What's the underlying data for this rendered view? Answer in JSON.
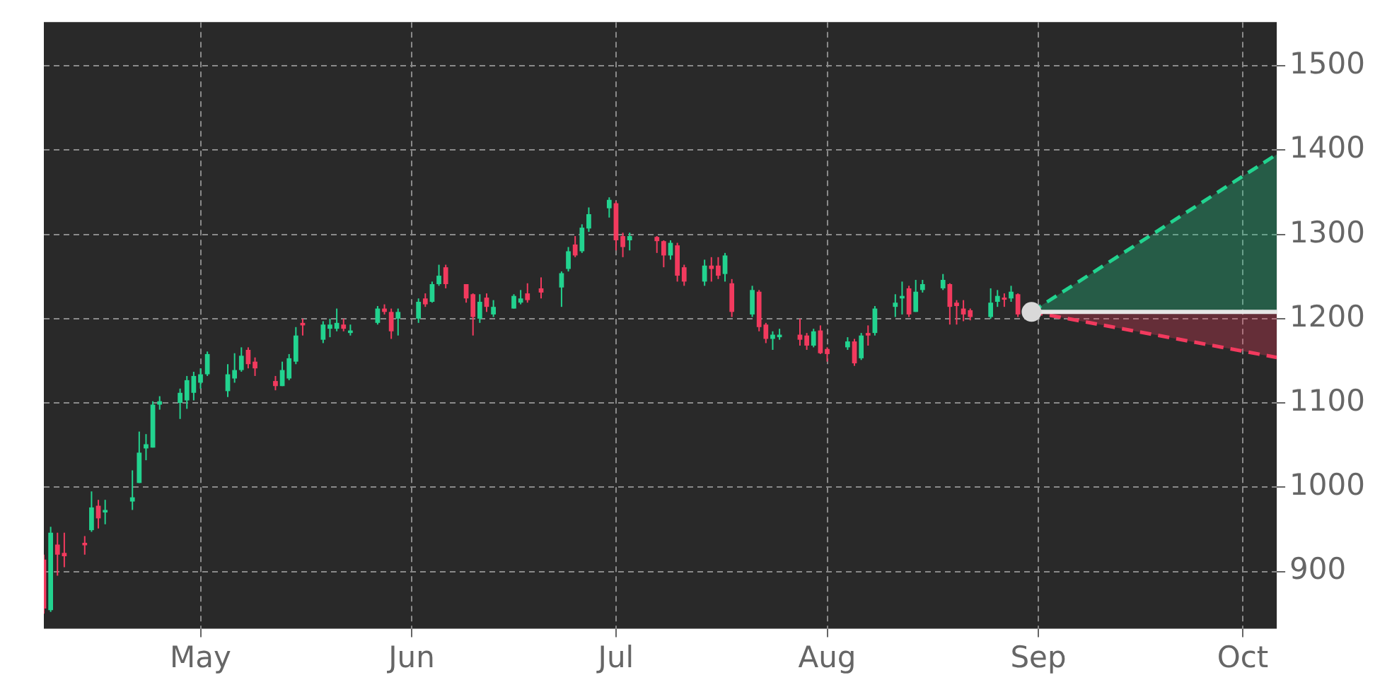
{
  "chart_data": {
    "type": "candlestick",
    "x": [
      "--04-08",
      "--04-09",
      "--04-10",
      "--04-11",
      "--04-14",
      "--04-15",
      "--04-16",
      "--04-17",
      "--04-21",
      "--04-22",
      "--04-23",
      "--04-24",
      "--04-25",
      "--04-28",
      "--04-29",
      "--04-30",
      "--05-01",
      "--05-02",
      "--05-05",
      "--05-06",
      "--05-07",
      "--05-08",
      "--05-09",
      "--05-12",
      "--05-13",
      "--05-14",
      "--05-15",
      "--05-16",
      "--05-19",
      "--05-20",
      "--05-21",
      "--05-22",
      "--05-23",
      "--05-27",
      "--05-28",
      "--05-29",
      "--05-30",
      "--06-02",
      "--06-03",
      "--06-04",
      "--06-05",
      "--06-06",
      "--06-09",
      "--06-10",
      "--06-11",
      "--06-12",
      "--06-13",
      "--06-16",
      "--06-17",
      "--06-18",
      "--06-20",
      "--06-23",
      "--06-24",
      "--06-25",
      "--06-26",
      "--06-27",
      "--06-30",
      "--07-01",
      "--07-02",
      "--07-03",
      "--07-07",
      "--07-08",
      "--07-09",
      "--07-10",
      "--07-11",
      "--07-14",
      "--07-15",
      "--07-16",
      "--07-17",
      "--07-18",
      "--07-21",
      "--07-22",
      "--07-23",
      "--07-24",
      "--07-25",
      "--07-28",
      "--07-29",
      "--07-30",
      "--07-31",
      "--08-01",
      "--08-04",
      "--08-05",
      "--08-06",
      "--08-07",
      "--08-08",
      "--08-11",
      "--08-12",
      "--08-13",
      "--08-14",
      "--08-15",
      "--08-18",
      "--08-19",
      "--08-20",
      "--08-21",
      "--08-22",
      "--08-25",
      "--08-26",
      "--08-27",
      "--08-28",
      "--08-29"
    ],
    "ohlc": [
      [
        914,
        920,
        850,
        856
      ],
      [
        854,
        953,
        852,
        946
      ],
      [
        932,
        946,
        895,
        920
      ],
      [
        922,
        946,
        905,
        918
      ],
      [
        934,
        942,
        920,
        931
      ],
      [
        949,
        995,
        947,
        976
      ],
      [
        978,
        985,
        951,
        963
      ],
      [
        970,
        985,
        956,
        973
      ],
      [
        983,
        1020,
        973,
        988
      ],
      [
        1005,
        1066,
        1005,
        1041
      ],
      [
        1046,
        1063,
        1032,
        1051
      ],
      [
        1047,
        1102,
        1047,
        1098
      ],
      [
        1098,
        1108,
        1092,
        1102
      ],
      [
        1100,
        1117,
        1081,
        1112
      ],
      [
        1103,
        1132,
        1093,
        1127
      ],
      [
        1112,
        1137,
        1103,
        1132
      ],
      [
        1124,
        1141,
        1117,
        1134
      ],
      [
        1134,
        1161,
        1132,
        1158
      ],
      [
        1114,
        1146,
        1107,
        1134
      ],
      [
        1129,
        1159,
        1124,
        1139
      ],
      [
        1139,
        1166,
        1137,
        1156
      ],
      [
        1163,
        1166,
        1141,
        1146
      ],
      [
        1149,
        1154,
        1132,
        1141
      ],
      [
        1126,
        1132,
        1115,
        1120
      ],
      [
        1120,
        1149,
        1120,
        1139
      ],
      [
        1129,
        1158,
        1127,
        1153
      ],
      [
        1149,
        1190,
        1146,
        1180
      ],
      [
        1195,
        1200,
        1180,
        1192
      ],
      [
        1175,
        1197,
        1171,
        1193
      ],
      [
        1188,
        1200,
        1178,
        1193
      ],
      [
        1188,
        1212,
        1185,
        1195
      ],
      [
        1193,
        1200,
        1185,
        1188
      ],
      [
        1183,
        1193,
        1180,
        1186
      ],
      [
        1195,
        1215,
        1193,
        1212
      ],
      [
        1212,
        1217,
        1205,
        1208
      ],
      [
        1208,
        1212,
        1176,
        1185
      ],
      [
        1200,
        1212,
        1180,
        1208
      ],
      [
        1200,
        1224,
        1195,
        1220
      ],
      [
        1224,
        1230,
        1214,
        1217
      ],
      [
        1220,
        1244,
        1219,
        1241
      ],
      [
        1241,
        1264,
        1239,
        1251
      ],
      [
        1261,
        1264,
        1236,
        1241
      ],
      [
        1241,
        1241,
        1219,
        1224
      ],
      [
        1229,
        1230,
        1180,
        1202
      ],
      [
        1200,
        1229,
        1195,
        1220
      ],
      [
        1225,
        1230,
        1208,
        1214
      ],
      [
        1205,
        1222,
        1202,
        1214
      ],
      [
        1212,
        1229,
        1212,
        1227
      ],
      [
        1219,
        1234,
        1217,
        1224
      ],
      [
        1230,
        1242,
        1219,
        1222
      ],
      [
        1236,
        1249,
        1224,
        1231
      ],
      [
        1237,
        1256,
        1214,
        1254
      ],
      [
        1259,
        1285,
        1256,
        1280
      ],
      [
        1288,
        1298,
        1273,
        1275
      ],
      [
        1280,
        1312,
        1278,
        1308
      ],
      [
        1307,
        1332,
        1303,
        1324
      ],
      [
        1331,
        1344,
        1320,
        1341
      ],
      [
        1337,
        1339,
        1281,
        1293
      ],
      [
        1298,
        1302,
        1273,
        1285
      ],
      [
        1293,
        1302,
        1281,
        1298
      ],
      [
        1297,
        1298,
        1278,
        1292
      ],
      [
        1292,
        1293,
        1261,
        1275
      ],
      [
        1275,
        1293,
        1270,
        1290
      ],
      [
        1287,
        1290,
        1244,
        1251
      ],
      [
        1261,
        1264,
        1239,
        1244
      ],
      [
        1244,
        1270,
        1239,
        1263
      ],
      [
        1263,
        1273,
        1244,
        1259
      ],
      [
        1263,
        1273,
        1247,
        1251
      ],
      [
        1253,
        1278,
        1244,
        1275
      ],
      [
        1242,
        1247,
        1202,
        1208
      ],
      [
        1205,
        1239,
        1202,
        1234
      ],
      [
        1232,
        1234,
        1185,
        1190
      ],
      [
        1193,
        1195,
        1171,
        1176
      ],
      [
        1176,
        1185,
        1163,
        1181
      ],
      [
        1178,
        1188,
        1175,
        1181
      ],
      [
        1181,
        1200,
        1168,
        1175
      ],
      [
        1180,
        1183,
        1163,
        1168
      ],
      [
        1168,
        1188,
        1166,
        1185
      ],
      [
        1186,
        1192,
        1158,
        1159
      ],
      [
        1164,
        1166,
        1149,
        1158
      ],
      [
        1166,
        1178,
        1163,
        1173
      ],
      [
        1173,
        1176,
        1144,
        1147
      ],
      [
        1153,
        1183,
        1151,
        1180
      ],
      [
        1183,
        1192,
        1168,
        1180
      ],
      [
        1183,
        1215,
        1180,
        1212
      ],
      [
        1214,
        1229,
        1202,
        1219
      ],
      [
        1224,
        1244,
        1205,
        1227
      ],
      [
        1236,
        1239,
        1202,
        1205
      ],
      [
        1208,
        1246,
        1208,
        1232
      ],
      [
        1234,
        1246,
        1231,
        1241
      ],
      [
        1236,
        1253,
        1234,
        1246
      ],
      [
        1241,
        1242,
        1193,
        1214
      ],
      [
        1219,
        1222,
        1193,
        1215
      ],
      [
        1212,
        1222,
        1197,
        1205
      ],
      [
        1210,
        1212,
        1198,
        1202
      ],
      [
        1202,
        1236,
        1200,
        1219
      ],
      [
        1220,
        1234,
        1214,
        1227
      ],
      [
        1225,
        1230,
        1214,
        1224
      ],
      [
        1224,
        1239,
        1220,
        1232
      ],
      [
        1229,
        1230,
        1202,
        1205
      ]
    ],
    "colors": [
      "#f23a5e",
      "#22d38f",
      "#f23a5e",
      "#f23a5e",
      "#f23a5e",
      "#22d38f",
      "#f23a5e",
      "#22d38f",
      "#22d38f",
      "#22d38f",
      "#22d38f",
      "#22d38f",
      "#22d38f",
      "#22d38f",
      "#22d38f",
      "#22d38f",
      "#22d38f",
      "#22d38f",
      "#22d38f",
      "#22d38f",
      "#22d38f",
      "#f23a5e",
      "#f23a5e",
      "#f23a5e",
      "#22d38f",
      "#22d38f",
      "#22d38f",
      "#f23a5e",
      "#22d38f",
      "#22d38f",
      "#22d38f",
      "#f23a5e",
      "#22d38f",
      "#22d38f",
      "#f23a5e",
      "#f23a5e",
      "#22d38f",
      "#22d38f",
      "#f23a5e",
      "#22d38f",
      "#22d38f",
      "#f23a5e",
      "#f23a5e",
      "#f23a5e",
      "#22d38f",
      "#f23a5e",
      "#22d38f",
      "#22d38f",
      "#22d38f",
      "#f23a5e",
      "#f23a5e",
      "#22d38f",
      "#22d38f",
      "#f23a5e",
      "#22d38f",
      "#22d38f",
      "#22d38f",
      "#f23a5e",
      "#f23a5e",
      "#22d38f",
      "#f23a5e",
      "#f23a5e",
      "#22d38f",
      "#f23a5e",
      "#f23a5e",
      "#22d38f",
      "#f23a5e",
      "#f23a5e",
      "#22d38f",
      "#f23a5e",
      "#22d38f",
      "#f23a5e",
      "#f23a5e",
      "#22d38f",
      "#22d38f",
      "#f23a5e",
      "#f23a5e",
      "#22d38f",
      "#f23a5e",
      "#f23a5e",
      "#22d38f",
      "#f23a5e",
      "#22d38f",
      "#f23a5e",
      "#22d38f",
      "#22d38f",
      "#22d38f",
      "#f23a5e",
      "#22d38f",
      "#22d38f",
      "#22d38f",
      "#f23a5e",
      "#f23a5e",
      "#f23a5e",
      "#f23a5e",
      "#22d38f",
      "#22d38f",
      "#f23a5e",
      "#22d38f",
      "#f23a5e"
    ],
    "series": [
      {
        "type": "area",
        "color": "#22d38f",
        "line_style": "dashed",
        "x": [
          "--08-31",
          "--10-06"
        ],
        "values": [
          1208,
          1395
        ]
      },
      {
        "type": "area",
        "color": "#f23a5e",
        "line_style": "dashed",
        "x": [
          "--08-31",
          "--10-06"
        ],
        "values": [
          1208,
          1154
        ]
      },
      {
        "type": "line",
        "color": "#e6e6e6",
        "line_style": "solid",
        "x": [
          "--08-31",
          "--10-06"
        ],
        "values": [
          1208,
          1208
        ]
      },
      {
        "type": "scatter",
        "color": "#d9d9d9",
        "marker": "circle",
        "x": [
          "--08-31"
        ],
        "values": [
          1208
        ]
      }
    ],
    "xlim": [
      "--04-08",
      "--10-06"
    ],
    "xticks": [
      {
        "value": "--05-01",
        "label": "May"
      },
      {
        "value": "--06-01",
        "label": "Jun"
      },
      {
        "value": "--07-01",
        "label": "Jul"
      },
      {
        "value": "--08-01",
        "label": "Aug"
      },
      {
        "value": "--09-01",
        "label": "Sep"
      },
      {
        "value": "--10-01",
        "label": "Oct"
      }
    ],
    "ylim": [
      832,
      1552
    ],
    "yticks": [
      900,
      1000,
      1100,
      1200,
      1300,
      1400,
      1500
    ],
    "grid": true
  }
}
